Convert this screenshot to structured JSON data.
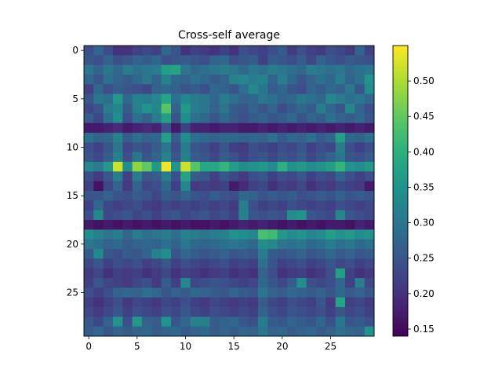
{
  "chart_data": {
    "type": "heatmap",
    "title": "Cross-self average",
    "xlabel": "",
    "ylabel": "",
    "rows": 30,
    "cols": 30,
    "xticks": [
      0,
      5,
      10,
      15,
      20,
      25
    ],
    "yticks": [
      0,
      5,
      10,
      15,
      20,
      25
    ],
    "colorbar": {
      "min": 0.14,
      "max": 0.55,
      "ticks": [
        0.15,
        0.2,
        0.25,
        0.3,
        0.35,
        0.4,
        0.45,
        0.5
      ],
      "tick_labels": [
        "0.15",
        "0.20",
        "0.25",
        "0.30",
        "0.35",
        "0.40",
        "0.45",
        "0.50"
      ],
      "colormap": "viridis"
    },
    "grid": false,
    "values": [
      [
        0.24,
        0.27,
        0.24,
        0.2,
        0.2,
        0.22,
        0.23,
        0.22,
        0.28,
        0.25,
        0.2,
        0.22,
        0.21,
        0.2,
        0.22,
        0.2,
        0.24,
        0.23,
        0.22,
        0.24,
        0.26,
        0.21,
        0.24,
        0.22,
        0.21,
        0.24,
        0.23,
        0.21,
        0.27,
        0.22
      ],
      [
        0.25,
        0.24,
        0.27,
        0.24,
        0.25,
        0.27,
        0.26,
        0.28,
        0.24,
        0.25,
        0.26,
        0.25,
        0.24,
        0.27,
        0.28,
        0.24,
        0.25,
        0.26,
        0.22,
        0.26,
        0.25,
        0.24,
        0.26,
        0.23,
        0.27,
        0.25,
        0.24,
        0.26,
        0.25,
        0.24
      ],
      [
        0.3,
        0.27,
        0.3,
        0.28,
        0.31,
        0.29,
        0.3,
        0.31,
        0.37,
        0.38,
        0.3,
        0.28,
        0.29,
        0.3,
        0.31,
        0.3,
        0.28,
        0.3,
        0.29,
        0.31,
        0.3,
        0.29,
        0.28,
        0.31,
        0.3,
        0.29,
        0.3,
        0.28,
        0.29,
        0.3
      ],
      [
        0.28,
        0.25,
        0.29,
        0.27,
        0.26,
        0.28,
        0.3,
        0.27,
        0.32,
        0.28,
        0.27,
        0.29,
        0.28,
        0.26,
        0.27,
        0.32,
        0.33,
        0.31,
        0.32,
        0.27,
        0.31,
        0.28,
        0.25,
        0.27,
        0.29,
        0.28,
        0.31,
        0.27,
        0.29,
        0.35
      ],
      [
        0.22,
        0.28,
        0.24,
        0.26,
        0.25,
        0.24,
        0.23,
        0.27,
        0.28,
        0.27,
        0.25,
        0.26,
        0.24,
        0.28,
        0.27,
        0.25,
        0.29,
        0.33,
        0.3,
        0.26,
        0.28,
        0.25,
        0.24,
        0.27,
        0.26,
        0.28,
        0.27,
        0.3,
        0.25,
        0.34
      ],
      [
        0.25,
        0.3,
        0.29,
        0.36,
        0.28,
        0.32,
        0.31,
        0.33,
        0.38,
        0.29,
        0.33,
        0.31,
        0.3,
        0.28,
        0.31,
        0.29,
        0.27,
        0.28,
        0.3,
        0.29,
        0.27,
        0.28,
        0.3,
        0.29,
        0.28,
        0.33,
        0.31,
        0.29,
        0.3,
        0.28
      ],
      [
        0.23,
        0.25,
        0.31,
        0.33,
        0.26,
        0.32,
        0.35,
        0.33,
        0.44,
        0.27,
        0.36,
        0.31,
        0.3,
        0.27,
        0.3,
        0.26,
        0.25,
        0.27,
        0.25,
        0.27,
        0.24,
        0.26,
        0.28,
        0.26,
        0.31,
        0.28,
        0.25,
        0.33,
        0.27,
        0.24
      ],
      [
        0.26,
        0.23,
        0.29,
        0.34,
        0.24,
        0.29,
        0.27,
        0.31,
        0.37,
        0.25,
        0.34,
        0.29,
        0.28,
        0.25,
        0.28,
        0.26,
        0.24,
        0.26,
        0.27,
        0.25,
        0.26,
        0.28,
        0.25,
        0.27,
        0.26,
        0.29,
        0.27,
        0.26,
        0.28,
        0.25
      ],
      [
        0.17,
        0.17,
        0.18,
        0.19,
        0.17,
        0.18,
        0.19,
        0.18,
        0.24,
        0.17,
        0.22,
        0.18,
        0.18,
        0.17,
        0.18,
        0.18,
        0.17,
        0.17,
        0.18,
        0.17,
        0.18,
        0.17,
        0.18,
        0.17,
        0.18,
        0.17,
        0.18,
        0.17,
        0.18,
        0.17
      ],
      [
        0.29,
        0.27,
        0.28,
        0.32,
        0.26,
        0.29,
        0.27,
        0.28,
        0.37,
        0.26,
        0.34,
        0.29,
        0.28,
        0.27,
        0.28,
        0.28,
        0.27,
        0.28,
        0.27,
        0.29,
        0.26,
        0.28,
        0.27,
        0.29,
        0.26,
        0.28,
        0.37,
        0.28,
        0.27,
        0.29
      ],
      [
        0.24,
        0.22,
        0.25,
        0.3,
        0.23,
        0.25,
        0.24,
        0.26,
        0.3,
        0.24,
        0.31,
        0.25,
        0.24,
        0.22,
        0.25,
        0.22,
        0.21,
        0.24,
        0.23,
        0.22,
        0.24,
        0.23,
        0.25,
        0.22,
        0.24,
        0.23,
        0.31,
        0.24,
        0.22,
        0.24
      ],
      [
        0.25,
        0.23,
        0.26,
        0.32,
        0.24,
        0.3,
        0.25,
        0.27,
        0.32,
        0.25,
        0.32,
        0.26,
        0.25,
        0.23,
        0.26,
        0.24,
        0.22,
        0.24,
        0.25,
        0.23,
        0.25,
        0.24,
        0.26,
        0.23,
        0.25,
        0.27,
        0.3,
        0.25,
        0.24,
        0.26
      ],
      [
        0.33,
        0.31,
        0.36,
        0.52,
        0.34,
        0.48,
        0.45,
        0.36,
        0.54,
        0.35,
        0.52,
        0.44,
        0.39,
        0.39,
        0.41,
        0.37,
        0.34,
        0.35,
        0.36,
        0.34,
        0.4,
        0.35,
        0.36,
        0.34,
        0.35,
        0.37,
        0.41,
        0.35,
        0.34,
        0.36
      ],
      [
        0.24,
        0.21,
        0.25,
        0.31,
        0.22,
        0.31,
        0.25,
        0.26,
        0.31,
        0.24,
        0.38,
        0.26,
        0.25,
        0.22,
        0.25,
        0.23,
        0.21,
        0.24,
        0.25,
        0.22,
        0.24,
        0.23,
        0.25,
        0.22,
        0.24,
        0.23,
        0.27,
        0.24,
        0.22,
        0.24
      ],
      [
        0.22,
        0.16,
        0.23,
        0.27,
        0.21,
        0.27,
        0.23,
        0.24,
        0.28,
        0.22,
        0.33,
        0.21,
        0.22,
        0.21,
        0.22,
        0.17,
        0.19,
        0.22,
        0.23,
        0.2,
        0.22,
        0.21,
        0.23,
        0.2,
        0.22,
        0.21,
        0.23,
        0.22,
        0.21,
        0.17
      ],
      [
        0.25,
        0.25,
        0.27,
        0.25,
        0.24,
        0.26,
        0.25,
        0.23,
        0.26,
        0.25,
        0.27,
        0.25,
        0.24,
        0.26,
        0.25,
        0.24,
        0.28,
        0.27,
        0.25,
        0.26,
        0.25,
        0.26,
        0.24,
        0.25,
        0.26,
        0.25,
        0.27,
        0.25,
        0.26,
        0.25
      ],
      [
        0.22,
        0.28,
        0.23,
        0.22,
        0.23,
        0.24,
        0.22,
        0.21,
        0.23,
        0.22,
        0.23,
        0.22,
        0.23,
        0.22,
        0.23,
        0.21,
        0.31,
        0.24,
        0.22,
        0.23,
        0.22,
        0.24,
        0.23,
        0.22,
        0.23,
        0.22,
        0.24,
        0.23,
        0.22,
        0.23
      ],
      [
        0.24,
        0.33,
        0.23,
        0.24,
        0.25,
        0.23,
        0.24,
        0.22,
        0.24,
        0.25,
        0.23,
        0.24,
        0.25,
        0.23,
        0.24,
        0.22,
        0.32,
        0.25,
        0.24,
        0.25,
        0.24,
        0.34,
        0.35,
        0.25,
        0.24,
        0.23,
        0.33,
        0.25,
        0.24,
        0.23
      ],
      [
        0.17,
        0.16,
        0.17,
        0.16,
        0.17,
        0.16,
        0.17,
        0.16,
        0.17,
        0.16,
        0.17,
        0.16,
        0.16,
        0.17,
        0.16,
        0.17,
        0.18,
        0.17,
        0.18,
        0.17,
        0.16,
        0.17,
        0.16,
        0.17,
        0.16,
        0.17,
        0.17,
        0.16,
        0.18,
        0.17
      ],
      [
        0.34,
        0.32,
        0.3,
        0.31,
        0.28,
        0.31,
        0.29,
        0.3,
        0.31,
        0.29,
        0.32,
        0.31,
        0.3,
        0.31,
        0.32,
        0.35,
        0.34,
        0.33,
        0.43,
        0.42,
        0.36,
        0.34,
        0.35,
        0.33,
        0.34,
        0.37,
        0.35,
        0.36,
        0.34,
        0.35
      ],
      [
        0.3,
        0.29,
        0.27,
        0.28,
        0.26,
        0.27,
        0.28,
        0.27,
        0.29,
        0.27,
        0.3,
        0.28,
        0.27,
        0.28,
        0.29,
        0.3,
        0.29,
        0.28,
        0.34,
        0.33,
        0.3,
        0.29,
        0.3,
        0.28,
        0.29,
        0.31,
        0.29,
        0.3,
        0.28,
        0.29
      ],
      [
        0.26,
        0.33,
        0.25,
        0.24,
        0.26,
        0.25,
        0.27,
        0.32,
        0.34,
        0.25,
        0.28,
        0.26,
        0.25,
        0.26,
        0.27,
        0.25,
        0.26,
        0.25,
        0.31,
        0.26,
        0.25,
        0.26,
        0.27,
        0.25,
        0.26,
        0.28,
        0.26,
        0.27,
        0.25,
        0.26
      ],
      [
        0.23,
        0.25,
        0.22,
        0.24,
        0.23,
        0.24,
        0.22,
        0.23,
        0.25,
        0.22,
        0.24,
        0.23,
        0.22,
        0.23,
        0.24,
        0.22,
        0.23,
        0.22,
        0.29,
        0.25,
        0.22,
        0.23,
        0.24,
        0.22,
        0.23,
        0.25,
        0.23,
        0.24,
        0.22,
        0.23
      ],
      [
        0.21,
        0.23,
        0.2,
        0.22,
        0.21,
        0.22,
        0.2,
        0.21,
        0.23,
        0.2,
        0.22,
        0.21,
        0.2,
        0.21,
        0.22,
        0.2,
        0.21,
        0.2,
        0.27,
        0.24,
        0.2,
        0.21,
        0.22,
        0.2,
        0.21,
        0.24,
        0.37,
        0.22,
        0.2,
        0.21
      ],
      [
        0.22,
        0.25,
        0.23,
        0.22,
        0.21,
        0.23,
        0.24,
        0.21,
        0.26,
        0.22,
        0.33,
        0.23,
        0.24,
        0.25,
        0.24,
        0.23,
        0.22,
        0.23,
        0.28,
        0.25,
        0.23,
        0.26,
        0.34,
        0.24,
        0.23,
        0.24,
        0.28,
        0.22,
        0.31,
        0.23
      ],
      [
        0.24,
        0.22,
        0.24,
        0.27,
        0.28,
        0.27,
        0.29,
        0.28,
        0.25,
        0.27,
        0.26,
        0.28,
        0.27,
        0.26,
        0.25,
        0.27,
        0.26,
        0.25,
        0.3,
        0.27,
        0.26,
        0.28,
        0.27,
        0.26,
        0.27,
        0.25,
        0.28,
        0.26,
        0.27,
        0.25
      ],
      [
        0.22,
        0.2,
        0.22,
        0.24,
        0.21,
        0.23,
        0.22,
        0.21,
        0.23,
        0.22,
        0.24,
        0.22,
        0.21,
        0.23,
        0.22,
        0.21,
        0.22,
        0.21,
        0.26,
        0.23,
        0.22,
        0.24,
        0.23,
        0.22,
        0.25,
        0.21,
        0.38,
        0.22,
        0.23,
        0.21
      ],
      [
        0.23,
        0.21,
        0.23,
        0.25,
        0.22,
        0.24,
        0.23,
        0.22,
        0.24,
        0.23,
        0.25,
        0.23,
        0.22,
        0.24,
        0.23,
        0.22,
        0.23,
        0.22,
        0.27,
        0.24,
        0.23,
        0.25,
        0.24,
        0.23,
        0.24,
        0.22,
        0.25,
        0.23,
        0.24,
        0.22
      ],
      [
        0.25,
        0.23,
        0.27,
        0.35,
        0.24,
        0.36,
        0.27,
        0.26,
        0.35,
        0.25,
        0.28,
        0.32,
        0.32,
        0.26,
        0.27,
        0.28,
        0.25,
        0.24,
        0.31,
        0.26,
        0.25,
        0.27,
        0.26,
        0.25,
        0.28,
        0.24,
        0.3,
        0.25,
        0.26,
        0.24
      ],
      [
        0.26,
        0.28,
        0.25,
        0.27,
        0.26,
        0.27,
        0.28,
        0.26,
        0.27,
        0.28,
        0.26,
        0.27,
        0.28,
        0.26,
        0.27,
        0.26,
        0.28,
        0.27,
        0.3,
        0.27,
        0.28,
        0.26,
        0.27,
        0.28,
        0.26,
        0.27,
        0.29,
        0.28,
        0.27,
        0.35
      ]
    ]
  }
}
